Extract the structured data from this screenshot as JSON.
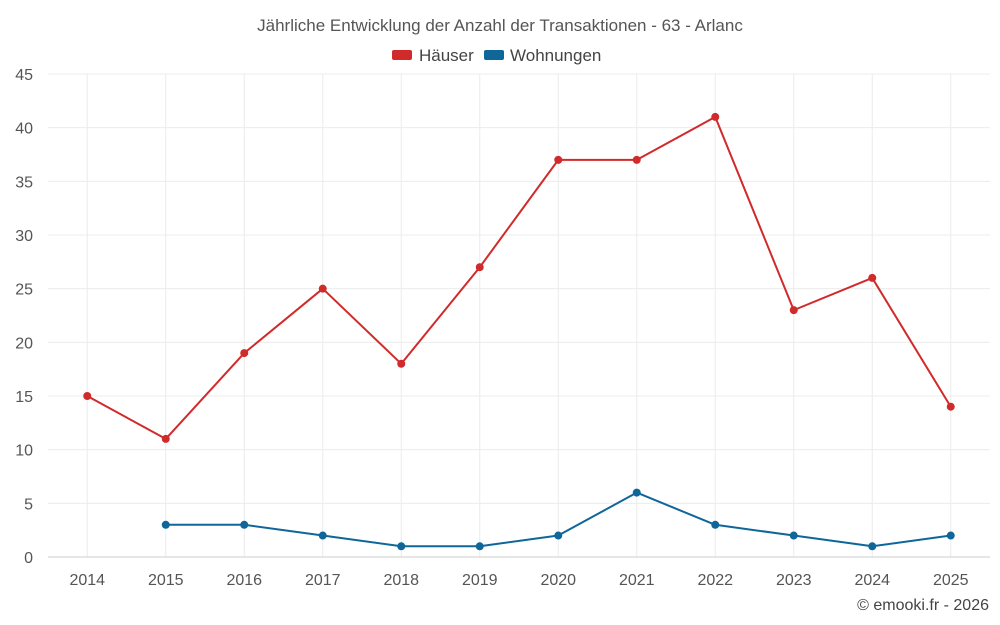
{
  "chart_data": {
    "type": "line",
    "title": "Jährliche Entwicklung der Anzahl der Transaktionen - 63 - Arlanc",
    "categories": [
      "2014",
      "2015",
      "2016",
      "2017",
      "2018",
      "2019",
      "2020",
      "2021",
      "2022",
      "2023",
      "2024",
      "2025"
    ],
    "ylim": [
      0,
      45
    ],
    "yticks": [
      0,
      5,
      10,
      15,
      20,
      25,
      30,
      35,
      40,
      45
    ],
    "grid": true,
    "legend_position": "top-center",
    "series": [
      {
        "name": "Häuser",
        "color": "#d12a2a",
        "values": [
          15,
          11,
          19,
          25,
          18,
          27,
          37,
          37,
          41,
          23,
          26,
          14
        ]
      },
      {
        "name": "Wohnungen",
        "color": "#0e6699",
        "values": [
          null,
          3,
          3,
          2,
          1,
          1,
          2,
          6,
          3,
          2,
          1,
          2
        ]
      }
    ]
  },
  "copyright": "© emooki.fr - 2026"
}
